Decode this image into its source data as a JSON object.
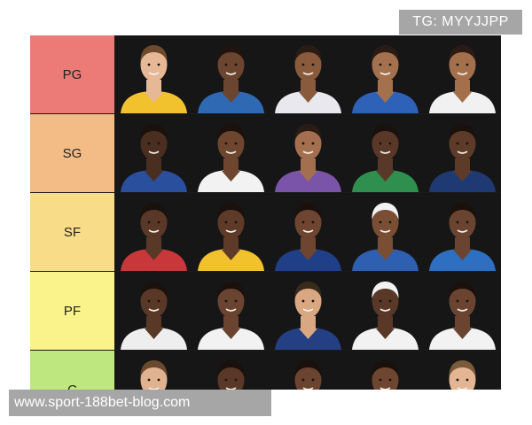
{
  "watermark_top": "TG: MYYJJPP",
  "watermark_bottom": "www.sport-188bet-blog.com",
  "tiers": [
    {
      "label": "PG",
      "color": "#ec7b77",
      "players": [
        {
          "skin": "#e7b896",
          "hair": "#6b4a2e",
          "jersey": "#f2c12e"
        },
        {
          "skin": "#6b4530",
          "hair": "#1f140e",
          "jersey": "#2f69b3"
        },
        {
          "skin": "#8a5a3c",
          "hair": "#2a1c14",
          "jersey": "#e8e8ee"
        },
        {
          "skin": "#a4714e",
          "hair": "#2a1c14",
          "jersey": "#2d62b8"
        },
        {
          "skin": "#a4704c",
          "hair": "#2a1c14",
          "jersey": "#f1f1f1"
        }
      ]
    },
    {
      "label": "SG",
      "color": "#f3bb85",
      "players": [
        {
          "skin": "#4a2e20",
          "hair": "#1a110c",
          "jersey": "#2a4f9c"
        },
        {
          "skin": "#6e4630",
          "hair": "#1a110c",
          "jersey": "#f2f2f2"
        },
        {
          "skin": "#a46f4e",
          "hair": "#2a1c14",
          "jersey": "#7a54a8"
        },
        {
          "skin": "#5a3828",
          "hair": "#1a110c",
          "jersey": "#2f8f4e"
        },
        {
          "skin": "#5e3a28",
          "hair": "#1a110c",
          "jersey": "#1f3a72"
        }
      ]
    },
    {
      "label": "SF",
      "color": "#f8dc88",
      "players": [
        {
          "skin": "#5a3828",
          "hair": "#1a110c",
          "jersey": "#c9373a"
        },
        {
          "skin": "#5e3a28",
          "hair": "#1a110c",
          "jersey": "#f2c12e"
        },
        {
          "skin": "#6e4530",
          "hair": "#1a110c",
          "jersey": "#1f3f88"
        },
        {
          "skin": "#7a4e34",
          "hair": "#f2f2f2",
          "jersey": "#2e5fb0"
        },
        {
          "skin": "#6a4430",
          "hair": "#1a110c",
          "jersey": "#2e6fc2"
        }
      ]
    },
    {
      "label": "PF",
      "color": "#faf28a",
      "players": [
        {
          "skin": "#5a3828",
          "hair": "#1a110c",
          "jersey": "#eeeeee"
        },
        {
          "skin": "#6a4430",
          "hair": "#1a110c",
          "jersey": "#f2f2f2"
        },
        {
          "skin": "#d9a882",
          "hair": "#3a2a1c",
          "jersey": "#253f84"
        },
        {
          "skin": "#5a3828",
          "hair": "#f2f2f2",
          "jersey": "#f2f2f2"
        },
        {
          "skin": "#6a4430",
          "hair": "#1a110c",
          "jersey": "#f2f2f2"
        }
      ]
    },
    {
      "label": "C",
      "color": "#bfe77f",
      "players": [
        {
          "skin": "#e1b290",
          "hair": "#6a4a2e",
          "jersey": "#2d62b8"
        },
        {
          "skin": "#5a3828",
          "hair": "#1a110c",
          "jersey": "#c9373a"
        },
        {
          "skin": "#6a4430",
          "hair": "#1a110c",
          "jersey": "#2a4f9c"
        },
        {
          "skin": "#6e4630",
          "hair": "#1a110c",
          "jersey": "#1f3a72"
        },
        {
          "skin": "#e3b592",
          "hair": "#7a5a3a",
          "jersey": "#f2f2f2"
        }
      ]
    }
  ]
}
